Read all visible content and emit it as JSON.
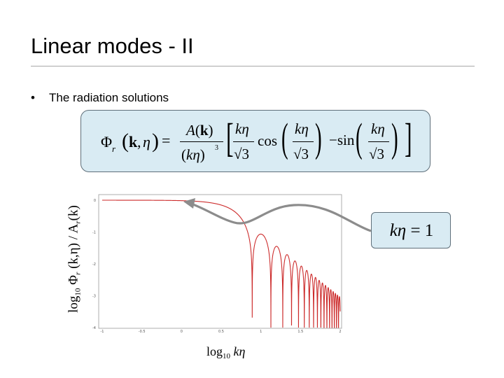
{
  "slide": {
    "title": "Linear modes - II",
    "bullet": "The radiation solutions"
  },
  "equation": {
    "lhs": "Φr (k,η) =",
    "numerator": "A(k)",
    "denominator": "(kη)³",
    "bracket_content": "kη/√3 cos(kη/√3) − sin(kη/√3)"
  },
  "callout": {
    "text": "kη = 1"
  },
  "axes": {
    "ylabel_parts": [
      "log",
      "10",
      " Φ",
      "r",
      " (k,η) / A",
      "r",
      "(k)"
    ],
    "xlabel_parts": [
      "log",
      "10",
      " kη"
    ]
  },
  "chart_data": {
    "type": "line",
    "x_range": [
      -1,
      2
    ],
    "y_range": [
      -4,
      0
    ],
    "x_ticks": [
      "-1",
      "-0.5",
      "0",
      "0.5",
      "1",
      "1.5",
      "2"
    ],
    "y_ticks": [
      "0",
      "-1",
      "-2",
      "-3",
      "-4"
    ],
    "plateau_y": 0,
    "transition_x": 0,
    "first_zero_x": 0.66,
    "series": [
      {
        "color": "#cc2a2a"
      }
    ],
    "grid": false
  },
  "colors": {
    "curve": "#cc2a2a",
    "box_fill": "#d9ebf3",
    "box_border": "#5f6f7a",
    "arrow": "#8c8c8c"
  }
}
